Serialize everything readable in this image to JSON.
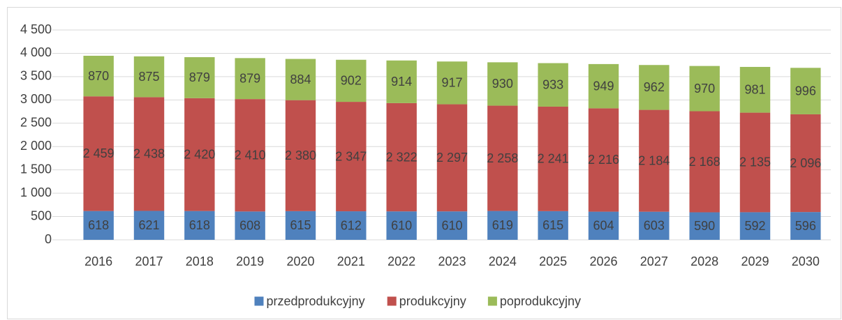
{
  "chart_data": {
    "type": "stacked_bar",
    "categories": [
      "2016",
      "2017",
      "2018",
      "2019",
      "2020",
      "2021",
      "2022",
      "2023",
      "2024",
      "2025",
      "2026",
      "2027",
      "2028",
      "2029",
      "2030"
    ],
    "series": [
      {
        "name": "przedprodukcyjny",
        "color": "#4f81bd",
        "values": [
          618,
          621,
          618,
          608,
          615,
          612,
          610,
          610,
          619,
          615,
          604,
          603,
          590,
          592,
          596
        ]
      },
      {
        "name": "produkcyjny",
        "color": "#c0504d",
        "values": [
          2459,
          2438,
          2420,
          2410,
          2380,
          2347,
          2322,
          2297,
          2258,
          2241,
          2216,
          2184,
          2168,
          2135,
          2096
        ],
        "value_labels": [
          "2 459",
          "2 438",
          "2 420",
          "2 410",
          "2 380",
          "2 347",
          "2 322",
          "2 297",
          "2 258",
          "2 241",
          "2 216",
          "2 184",
          "2 168",
          "2 135",
          "2 096"
        ]
      },
      {
        "name": "poprodukcyjny",
        "color": "#9bbb59",
        "values": [
          870,
          875,
          879,
          879,
          884,
          902,
          914,
          917,
          930,
          933,
          949,
          962,
          970,
          981,
          996
        ]
      }
    ],
    "ylim": [
      0,
      4500
    ],
    "yticks": [
      0,
      500,
      {
        "value": 1000,
        "label": "1 000"
      },
      {
        "value": 1500,
        "label": "1 500"
      },
      {
        "value": 2000,
        "label": "2 000"
      },
      {
        "value": 2500,
        "label": "2 500"
      },
      {
        "value": 3000,
        "label": "3 000"
      },
      {
        "value": 3500,
        "label": "3 500"
      },
      {
        "value": 4000,
        "label": "4 000"
      },
      {
        "value": 4500,
        "label": "4 500"
      }
    ],
    "grid": true,
    "legend": "bottom"
  }
}
